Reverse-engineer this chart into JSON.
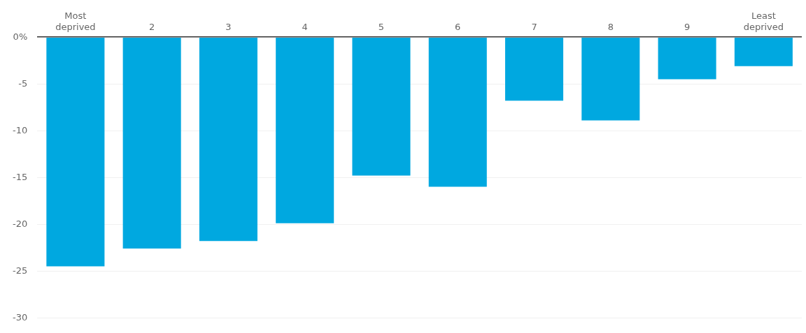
{
  "chart_data": {
    "type": "bar",
    "categories": [
      "Most deprived",
      "2",
      "3",
      "4",
      "5",
      "6",
      "7",
      "8",
      "9",
      "Least deprived"
    ],
    "values": [
      -24.5,
      -22.6,
      -21.8,
      -19.9,
      -14.8,
      -16.0,
      -6.8,
      -8.9,
      -4.5,
      -3.1
    ],
    "color": "#00a8e0",
    "ylim": [
      -30,
      0
    ],
    "yticks": [
      {
        "value": 0,
        "label": "0%"
      },
      -5,
      -10,
      -15,
      -20,
      -25,
      -30
    ],
    "grid": "y"
  }
}
